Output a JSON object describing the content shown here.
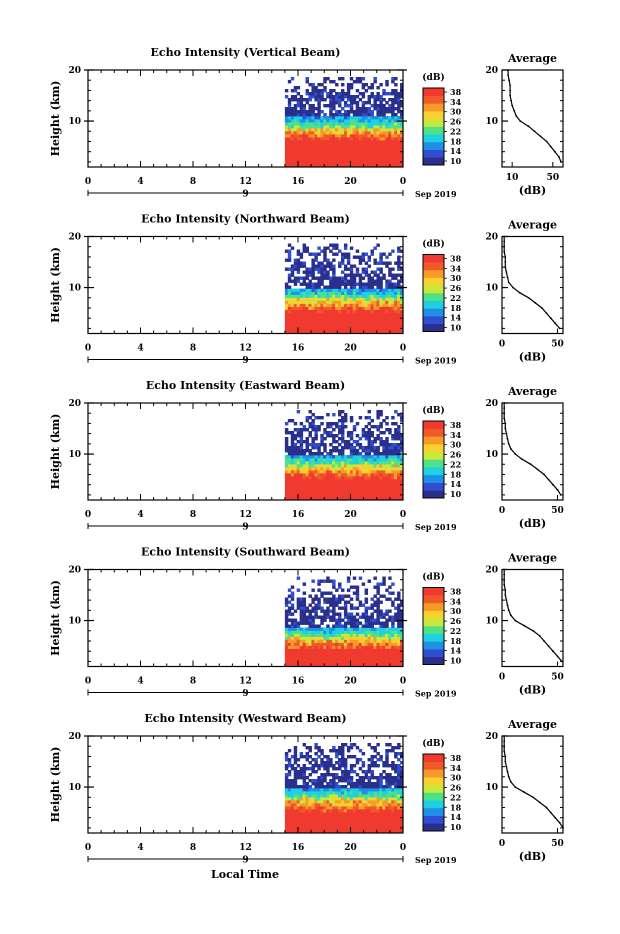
{
  "footer": {
    "xlabel": "Local Time"
  },
  "colorbar": {
    "unit": "(dB)",
    "ticks": [
      "38",
      "34",
      "30",
      "26",
      "22",
      "18",
      "14",
      "10"
    ],
    "colors": [
      "#2b2f8c",
      "#2f4fd0",
      "#1f8fe8",
      "#1fd0e0",
      "#4fe08a",
      "#c8e83c",
      "#f8d030",
      "#f89a28",
      "#f05a2a",
      "#f03a30"
    ]
  },
  "chart_data": [
    {
      "type": "heatmap",
      "title": "Echo Intensity (Vertical Beam)",
      "ylabel": "Height (km)",
      "y_ticks": [
        "20",
        "10"
      ],
      "x_ticks": [
        "0",
        "4",
        "8",
        "12",
        "16",
        "20",
        "0"
      ],
      "date_center": "9",
      "date_label": "Sep 2019",
      "xlim": [
        0,
        24
      ],
      "ylim": [
        1,
        20
      ],
      "data_start_hour": 15,
      "solid_top_km": 6,
      "profile": {
        "title": "Average",
        "xlabel": "(dB)",
        "x_ticks": [
          "10",
          "50"
        ],
        "y_ticks": [
          "20",
          "10"
        ],
        "xlim": [
          0,
          60
        ],
        "height_km": [
          2,
          3,
          4,
          5,
          6,
          7,
          8,
          9,
          10,
          11,
          12,
          13,
          14,
          15,
          16,
          17,
          18,
          19,
          20
        ],
        "db": [
          58,
          56,
          52,
          48,
          44,
          38,
          32,
          26,
          18,
          14,
          12,
          10,
          9,
          8,
          8,
          8,
          7,
          6,
          6
        ]
      }
    },
    {
      "type": "heatmap",
      "title": "Echo Intensity (Northward Beam)",
      "ylabel": "Height (km)",
      "y_ticks": [
        "20",
        "10"
      ],
      "x_ticks": [
        "0",
        "4",
        "8",
        "12",
        "16",
        "20",
        "0"
      ],
      "date_center": "9",
      "date_label": "Sep 2019",
      "xlim": [
        0,
        24
      ],
      "ylim": [
        1,
        20
      ],
      "data_start_hour": 15,
      "solid_top_km": 5,
      "profile": {
        "title": "Average",
        "xlabel": "(dB)",
        "x_ticks": [
          "0",
          "50"
        ],
        "y_ticks": [
          "20",
          "10"
        ],
        "xlim": [
          0,
          55
        ],
        "height_km": [
          2,
          3,
          4,
          5,
          6,
          7,
          8,
          9,
          10,
          11,
          12,
          13,
          14,
          15,
          16,
          17,
          18,
          19,
          20
        ],
        "db": [
          52,
          48,
          44,
          40,
          36,
          30,
          24,
          16,
          10,
          6,
          5,
          4,
          3,
          3,
          3,
          2,
          2,
          2,
          2
        ]
      }
    },
    {
      "type": "heatmap",
      "title": "Echo Intensity (Eastward Beam)",
      "ylabel": "Height (km)",
      "y_ticks": [
        "20",
        "10"
      ],
      "x_ticks": [
        "0",
        "4",
        "8",
        "12",
        "16",
        "20",
        "0"
      ],
      "date_center": "9",
      "date_label": "Sep 2019",
      "xlim": [
        0,
        24
      ],
      "ylim": [
        1,
        20
      ],
      "data_start_hour": 15,
      "solid_top_km": 5,
      "profile": {
        "title": "Average",
        "xlabel": "(dB)",
        "x_ticks": [
          "0",
          "50"
        ],
        "y_ticks": [
          "20",
          "10"
        ],
        "xlim": [
          0,
          55
        ],
        "height_km": [
          2,
          3,
          4,
          5,
          6,
          7,
          8,
          9,
          10,
          11,
          12,
          13,
          14,
          15,
          16,
          17,
          18,
          19,
          20
        ],
        "db": [
          53,
          50,
          46,
          42,
          38,
          32,
          26,
          18,
          12,
          8,
          6,
          5,
          4,
          3,
          3,
          2,
          2,
          2,
          2
        ]
      }
    },
    {
      "type": "heatmap",
      "title": "Echo Intensity (Southward Beam)",
      "ylabel": "Height (km)",
      "y_ticks": [
        "20",
        "10"
      ],
      "x_ticks": [
        "0",
        "4",
        "8",
        "12",
        "16",
        "20",
        "0"
      ],
      "date_center": "9",
      "date_label": "Sep 2019",
      "xlim": [
        0,
        24
      ],
      "ylim": [
        1,
        20
      ],
      "data_start_hour": 15,
      "solid_top_km": 4,
      "profile": {
        "title": "Average",
        "xlabel": "(dB)",
        "x_ticks": [
          "0",
          "50"
        ],
        "y_ticks": [
          "20",
          "10"
        ],
        "xlim": [
          0,
          55
        ],
        "height_km": [
          2,
          3,
          4,
          5,
          6,
          7,
          8,
          9,
          10,
          11,
          12,
          13,
          14,
          15,
          16,
          17,
          18,
          19,
          20
        ],
        "db": [
          54,
          50,
          46,
          42,
          38,
          34,
          28,
          20,
          12,
          8,
          6,
          5,
          4,
          3,
          3,
          2,
          2,
          2,
          2
        ]
      }
    },
    {
      "type": "heatmap",
      "title": "Echo Intensity (Westward Beam)",
      "ylabel": "Height (km)",
      "y_ticks": [
        "20",
        "10"
      ],
      "x_ticks": [
        "0",
        "4",
        "8",
        "12",
        "16",
        "20",
        "0"
      ],
      "date_center": "9",
      "date_label": "Sep 2019",
      "xlim": [
        0,
        24
      ],
      "ylim": [
        1,
        20
      ],
      "data_start_hour": 15,
      "solid_top_km": 5,
      "profile": {
        "title": "Average",
        "xlabel": "(dB)",
        "x_ticks": [
          "0",
          "50"
        ],
        "y_ticks": [
          "20",
          "10"
        ],
        "xlim": [
          0,
          55
        ],
        "height_km": [
          2,
          3,
          4,
          5,
          6,
          7,
          8,
          9,
          10,
          11,
          12,
          13,
          14,
          15,
          16,
          17,
          18,
          19,
          20
        ],
        "db": [
          55,
          52,
          48,
          44,
          40,
          34,
          28,
          20,
          12,
          8,
          6,
          5,
          4,
          3,
          3,
          2,
          2,
          2,
          2
        ]
      }
    }
  ]
}
